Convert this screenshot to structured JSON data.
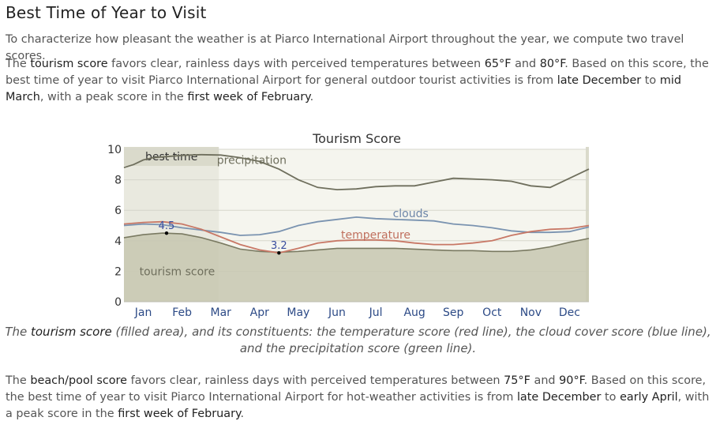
{
  "section": {
    "title": "Best Time of Year to Visit",
    "intro": "To characterize how pleasant the weather is at Piarco International Airport throughout the year, we compute two travel scores."
  },
  "tourism_paragraph": {
    "t1": "The ",
    "h1": "tourism score",
    "t2": " favors clear, rainless days with perceived temperatures between ",
    "h2": "65°F",
    "t3": " and ",
    "h3": "80°F",
    "t4": ". Based on this score, the best time of year to visit Piarco International Airport for general outdoor tourist activities is from ",
    "h4": "late December",
    "t5": " to ",
    "h5": "mid March",
    "t6": ", with a peak score in the ",
    "h6": "first week of February",
    "t7": "."
  },
  "caption": {
    "t1": "The ",
    "h1": "tourism score",
    "t2": " (filled area), and its constituents: the temperature score (red line), the cloud cover score (blue line), and the precipitation score (green line)."
  },
  "beach_paragraph": {
    "t1": "The ",
    "h1": "beach/pool score",
    "t2": " favors clear, rainless days with perceived temperatures between ",
    "h2": "75°F",
    "t3": " and ",
    "h3": "90°F",
    "t4": ". Based on this score, the best time of year to visit Piarco International Airport for hot-weather activities is from ",
    "h4": "late December",
    "t5": " to ",
    "h5": "early April",
    "t6": ", with a peak score in the ",
    "h6": "first week of February",
    "t7": "."
  },
  "chart_data": {
    "type": "area",
    "title": "Tourism Score",
    "x_unit": "month",
    "xlim": [
      0,
      12
    ],
    "ylim": [
      0,
      10
    ],
    "y_ticks": [
      0,
      2,
      4,
      6,
      8,
      10
    ],
    "months": [
      "Jan",
      "Feb",
      "Mar",
      "Apr",
      "May",
      "Jun",
      "Jul",
      "Aug",
      "Sep",
      "Oct",
      "Nov",
      "Dec"
    ],
    "best_time": {
      "label": "best time",
      "from": 0,
      "to": 2.45
    },
    "series": [
      {
        "name": "precipitation",
        "color": "#6f6f5d",
        "points": [
          [
            0,
            8.8
          ],
          [
            0.25,
            9.0
          ],
          [
            0.5,
            9.3
          ],
          [
            0.75,
            9.45
          ],
          [
            1,
            9.5
          ],
          [
            1.5,
            9.6
          ],
          [
            2,
            9.65
          ],
          [
            2.5,
            9.62
          ],
          [
            3,
            9.45
          ],
          [
            3.5,
            9.2
          ],
          [
            4,
            8.7
          ],
          [
            4.5,
            8.0
          ],
          [
            5,
            7.5
          ],
          [
            5.5,
            7.35
          ],
          [
            6,
            7.4
          ],
          [
            6.5,
            7.55
          ],
          [
            7,
            7.6
          ],
          [
            7.5,
            7.6
          ],
          [
            8,
            7.85
          ],
          [
            8.5,
            8.1
          ],
          [
            9,
            8.05
          ],
          [
            9.5,
            8.0
          ],
          [
            10,
            7.9
          ],
          [
            10.5,
            7.6
          ],
          [
            11,
            7.5
          ],
          [
            11.5,
            8.1
          ],
          [
            12,
            8.7
          ]
        ]
      },
      {
        "name": "clouds",
        "color": "#7a93b0",
        "points": [
          [
            0,
            5.0
          ],
          [
            0.5,
            5.1
          ],
          [
            1,
            5.05
          ],
          [
            1.5,
            4.85
          ],
          [
            2,
            4.7
          ],
          [
            2.5,
            4.55
          ],
          [
            3,
            4.35
          ],
          [
            3.5,
            4.4
          ],
          [
            4,
            4.6
          ],
          [
            4.5,
            5.0
          ],
          [
            5,
            5.25
          ],
          [
            5.5,
            5.4
          ],
          [
            6,
            5.55
          ],
          [
            6.5,
            5.45
          ],
          [
            7,
            5.4
          ],
          [
            7.5,
            5.35
          ],
          [
            8,
            5.3
          ],
          [
            8.5,
            5.1
          ],
          [
            9,
            5.0
          ],
          [
            9.5,
            4.85
          ],
          [
            10,
            4.65
          ],
          [
            10.5,
            4.55
          ],
          [
            11,
            4.55
          ],
          [
            11.5,
            4.6
          ],
          [
            12,
            4.9
          ]
        ]
      },
      {
        "name": "temperature",
        "color": "#c87866",
        "points": [
          [
            0,
            5.1
          ],
          [
            0.5,
            5.2
          ],
          [
            1,
            5.25
          ],
          [
            1.5,
            5.1
          ],
          [
            2,
            4.75
          ],
          [
            2.5,
            4.25
          ],
          [
            3,
            3.75
          ],
          [
            3.5,
            3.4
          ],
          [
            4,
            3.2
          ],
          [
            4.5,
            3.5
          ],
          [
            5,
            3.85
          ],
          [
            5.5,
            4.0
          ],
          [
            6,
            4.05
          ],
          [
            6.5,
            4.05
          ],
          [
            7,
            4.0
          ],
          [
            7.5,
            3.85
          ],
          [
            8,
            3.75
          ],
          [
            8.5,
            3.75
          ],
          [
            9,
            3.85
          ],
          [
            9.5,
            4.0
          ],
          [
            10,
            4.35
          ],
          [
            10.5,
            4.6
          ],
          [
            11,
            4.75
          ],
          [
            11.5,
            4.8
          ],
          [
            12,
            5.0
          ]
        ]
      },
      {
        "name": "tourism score",
        "color": "#7a7a62",
        "fill": "#c7c7b0",
        "points": [
          [
            0,
            4.2
          ],
          [
            0.5,
            4.4
          ],
          [
            1,
            4.5
          ],
          [
            1.5,
            4.45
          ],
          [
            2,
            4.2
          ],
          [
            2.5,
            3.85
          ],
          [
            3,
            3.45
          ],
          [
            3.5,
            3.3
          ],
          [
            4,
            3.25
          ],
          [
            4.5,
            3.3
          ],
          [
            5,
            3.4
          ],
          [
            5.5,
            3.5
          ],
          [
            6,
            3.5
          ],
          [
            6.5,
            3.5
          ],
          [
            7,
            3.5
          ],
          [
            7.5,
            3.45
          ],
          [
            8,
            3.4
          ],
          [
            8.5,
            3.35
          ],
          [
            9,
            3.35
          ],
          [
            9.5,
            3.3
          ],
          [
            10,
            3.3
          ],
          [
            10.5,
            3.4
          ],
          [
            11,
            3.6
          ],
          [
            11.5,
            3.9
          ],
          [
            12,
            4.15
          ]
        ]
      }
    ],
    "annotations": [
      {
        "label": "4.5",
        "x": 1.1,
        "y": 4.5,
        "color": "#3a4ea0"
      },
      {
        "label": "3.2",
        "x": 4.0,
        "y": 3.2,
        "color": "#3a4ea0"
      }
    ]
  }
}
